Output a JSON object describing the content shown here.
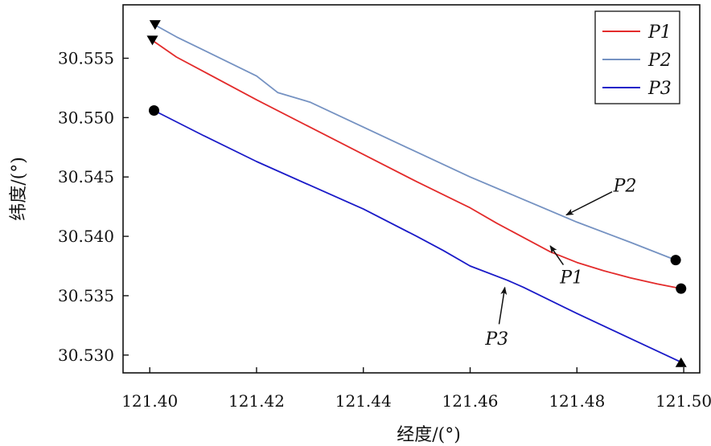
{
  "chart_data": {
    "type": "line",
    "xlabel": "经度/(°)",
    "ylabel": "纬度/(°)",
    "xlim": [
      121.395,
      121.503
    ],
    "ylim": [
      30.5285,
      30.5595
    ],
    "xticks": [
      121.4,
      121.42,
      121.44,
      121.46,
      121.48,
      121.5
    ],
    "xtick_labels": [
      "121.40",
      "121.42",
      "121.44",
      "121.46",
      "121.48",
      "121.50"
    ],
    "yticks": [
      30.53,
      30.535,
      30.54,
      30.545,
      30.55,
      30.555
    ],
    "ytick_labels": [
      "30.530",
      "30.535",
      "30.540",
      "30.545",
      "30.550",
      "30.555"
    ],
    "grid": false,
    "legend_position": "top-right",
    "series": [
      {
        "name": "P1",
        "color": "#e32b2b",
        "x": [
          121.4005,
          121.405,
          121.41,
          121.42,
          121.43,
          121.44,
          121.45,
          121.46,
          121.465,
          121.47,
          121.475,
          121.48,
          121.485,
          121.49,
          121.495,
          121.4995
        ],
        "y": [
          30.5565,
          30.5551,
          30.5539,
          30.5515,
          30.5492,
          30.5469,
          30.5446,
          30.5424,
          30.5411,
          30.5399,
          30.5387,
          30.5378,
          30.5371,
          30.5365,
          30.536,
          30.5356
        ],
        "start_marker": "triangle-down",
        "end_marker": "circle"
      },
      {
        "name": "P2",
        "color": "#7592c2",
        "x": [
          121.401,
          121.405,
          121.41,
          121.42,
          121.424,
          121.43,
          121.44,
          121.45,
          121.46,
          121.47,
          121.48,
          121.49,
          121.4985
        ],
        "y": [
          30.5578,
          30.5568,
          30.5557,
          30.5535,
          30.5521,
          30.5513,
          30.5492,
          30.5471,
          30.545,
          30.5431,
          30.5412,
          30.5395,
          30.538
        ],
        "start_marker": "triangle-down",
        "end_marker": "circle"
      },
      {
        "name": "P3",
        "color": "#1a1ac8",
        "x": [
          121.4008,
          121.41,
          121.42,
          121.43,
          121.44,
          121.45,
          121.455,
          121.46,
          121.467,
          121.47,
          121.48,
          121.49,
          121.4995
        ],
        "y": [
          30.5506,
          30.5485,
          30.5463,
          30.5443,
          30.5423,
          30.54,
          30.5388,
          30.5375,
          30.5363,
          30.5357,
          30.5335,
          30.5314,
          30.5294
        ],
        "start_marker": "circle",
        "end_marker": "triangle-up"
      }
    ],
    "annotations": [
      {
        "text": "P2",
        "arrow_to": [
          121.478,
          30.5418
        ],
        "text_at": [
          121.489,
          30.5443
        ]
      },
      {
        "text": "P1",
        "arrow_to": [
          121.475,
          30.5392
        ],
        "text_at": [
          121.479,
          30.5366
        ]
      },
      {
        "text": "P3",
        "arrow_to": [
          121.4665,
          30.5357
        ],
        "text_at": [
          121.465,
          30.5314
        ]
      }
    ]
  }
}
